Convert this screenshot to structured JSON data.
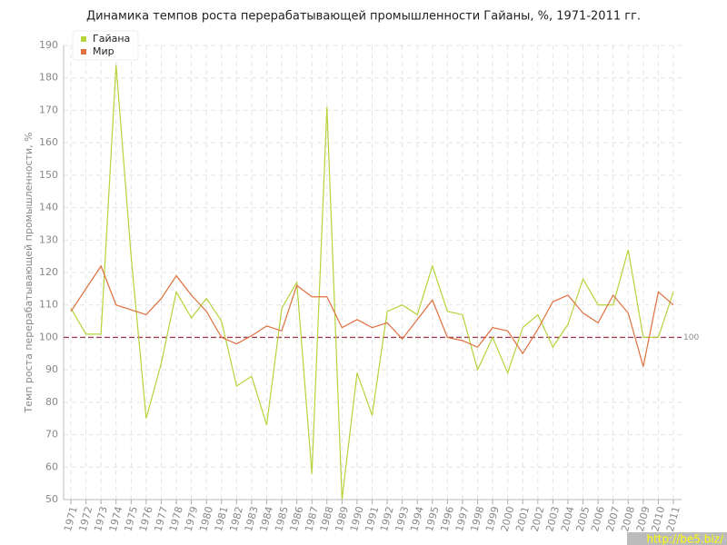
{
  "chart_data": {
    "type": "line",
    "title": "Динамика темпов роста перерабатывающей промышленности Гайаны, %, 1971-2011 гг.",
    "y_label": "Темп роста перерабатывающей промышленности, %",
    "categories": [
      "1971",
      "1972",
      "1973",
      "1974",
      "1975",
      "1976",
      "1977",
      "1978",
      "1979",
      "1980",
      "1981",
      "1982",
      "1983",
      "1984",
      "1985",
      "1986",
      "1987",
      "1988",
      "1989",
      "1990",
      "1991",
      "1992",
      "1993",
      "1994",
      "1995",
      "1996",
      "1997",
      "1998",
      "1999",
      "2000",
      "2001",
      "2002",
      "2003",
      "2004",
      "2005",
      "2006",
      "2007",
      "2008",
      "2009",
      "2010",
      "2011"
    ],
    "series": [
      {
        "name": "Гайана",
        "color": "#b5d43a",
        "values": [
          109,
          101,
          101,
          184,
          125,
          75,
          92,
          114,
          106,
          112,
          105,
          85,
          88,
          73,
          109,
          117,
          58,
          171,
          50,
          89,
          76,
          108,
          110,
          107,
          122,
          108,
          107,
          90,
          100,
          89,
          103,
          107,
          97,
          104,
          118,
          110,
          110,
          127,
          100,
          100,
          114
        ]
      },
      {
        "name": "Мир",
        "color": "#e0703f",
        "values": [
          108,
          115,
          122,
          110,
          108.5,
          107,
          112,
          119,
          113,
          108,
          100,
          98,
          100.5,
          103.5,
          102,
          116,
          112.5,
          112.5,
          103,
          105.5,
          103,
          104.5,
          99.5,
          105.5,
          111.5,
          100,
          99,
          97,
          103,
          102,
          95,
          102.5,
          111,
          113,
          107.5,
          104.5,
          113,
          107.5,
          91,
          114,
          110
        ]
      }
    ],
    "ylim": [
      50,
      190
    ],
    "yticks": [
      50,
      60,
      70,
      80,
      90,
      100,
      110,
      120,
      130,
      140,
      150,
      160,
      170,
      180,
      190
    ],
    "reference_line": 100,
    "reference_color": "#a04050",
    "grid": true,
    "legend": "top-left",
    "watermark": "http://be5.biz/"
  }
}
